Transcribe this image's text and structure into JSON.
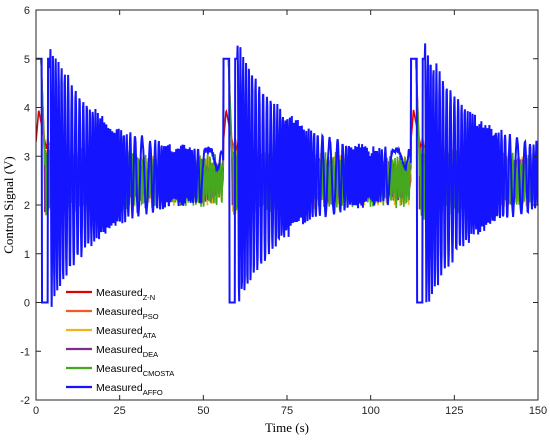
{
  "chart_data": {
    "type": "line",
    "title": "",
    "xlabel": "Time (s)",
    "ylabel": "Control Signal (V)",
    "xlim": [
      0,
      150
    ],
    "ylim": [
      -2,
      6
    ],
    "xticks": [
      0,
      25,
      50,
      75,
      100,
      125,
      150
    ],
    "yticks": [
      -2,
      -1,
      0,
      1,
      2,
      3,
      4,
      5,
      6
    ],
    "grid": false,
    "legend_position": "bottom-left",
    "setpoint_change_times": [
      0,
      56,
      112
    ],
    "segment_length": 56,
    "series": [
      {
        "name_main": "Measured",
        "name_sub": "Z-N",
        "color": "#e00000",
        "saturation_peak": 3.95,
        "initial_fall": 3.0,
        "oscillation_amplitude": 0.15,
        "steady_value": 2.5
      },
      {
        "name_main": "Measured",
        "name_sub": "PSO",
        "color": "#f15a22",
        "saturation_peak": 5.0,
        "initial_fall": 3.1,
        "oscillation_amplitude": 0.35,
        "steady_value": 2.6
      },
      {
        "name_main": "Measured",
        "name_sub": "ATA",
        "color": "#f2b21b",
        "saturation_peak": 5.0,
        "initial_fall": 3.0,
        "oscillation_amplitude": 0.55,
        "steady_value": 2.5
      },
      {
        "name_main": "Measured",
        "name_sub": "DEA",
        "color": "#7e2f8e",
        "saturation_peak": 5.0,
        "initial_fall": 2.9,
        "oscillation_amplitude": 0.45,
        "steady_value": 2.5
      },
      {
        "name_main": "Measured",
        "name_sub": "CMOSTA",
        "color": "#46a81e",
        "saturation_peak": 5.0,
        "initial_fall": 2.9,
        "oscillation_amplitude": 0.6,
        "steady_value": 2.5
      },
      {
        "name_main": "Measured",
        "name_sub": "AFFO",
        "color": "#1414ff",
        "saturation_peak": 5.0,
        "initial_fall": 0.0,
        "oscillation_amplitude": 2.0,
        "steady_value": 2.6
      }
    ]
  }
}
